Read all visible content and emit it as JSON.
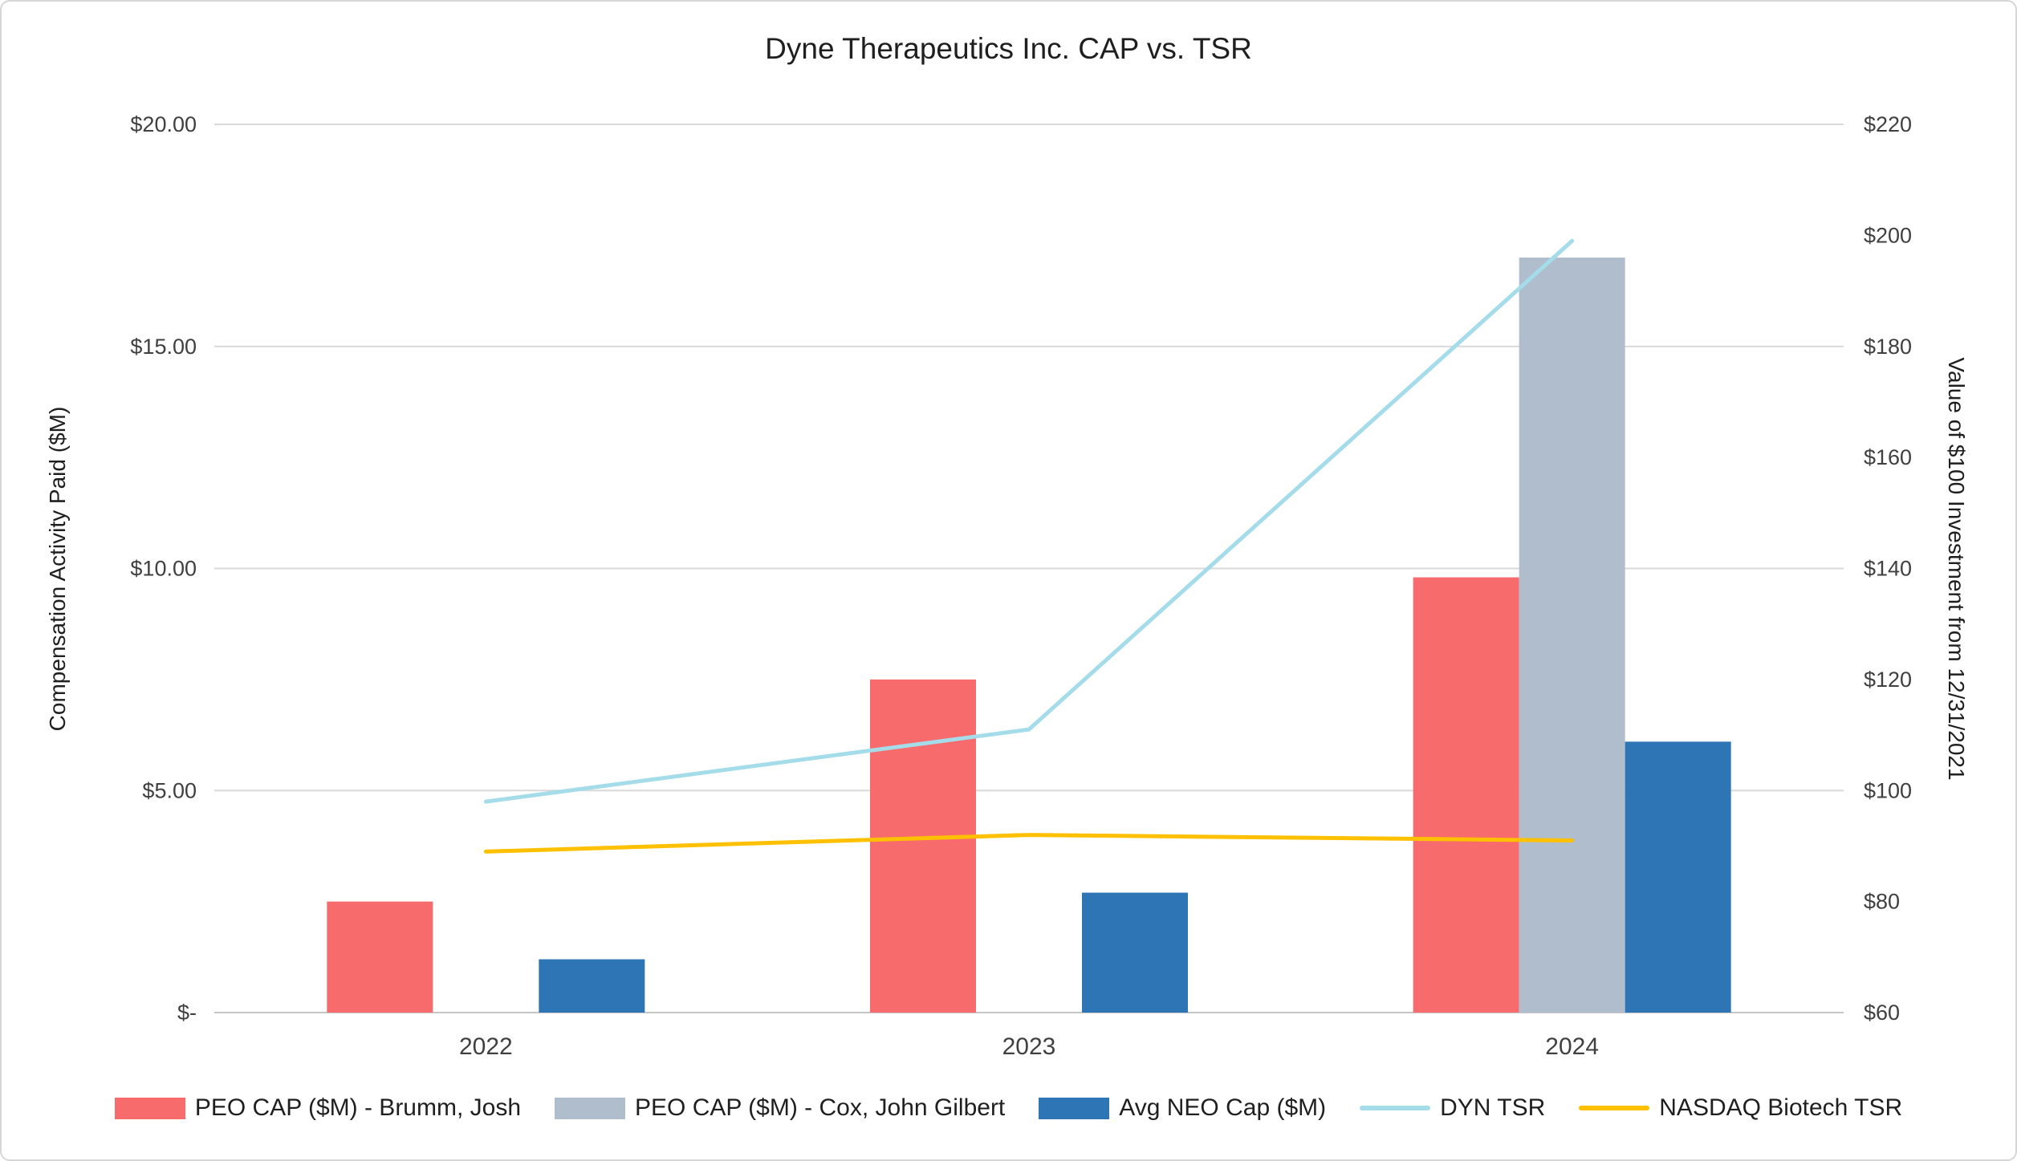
{
  "chart_data": {
    "type": "combo-bar-line",
    "title": "Dyne Therapeutics Inc. CAP vs. TSR",
    "categories": [
      "2022",
      "2023",
      "2024"
    ],
    "left_axis": {
      "label": "Compensation Activity Paid ($M)",
      "min": 0,
      "max": 20,
      "ticks": [
        "$-",
        "$5.00",
        "$10.00",
        "$15.00",
        "$20.00"
      ],
      "tick_values": [
        0,
        5,
        10,
        15,
        20
      ]
    },
    "right_axis": {
      "label": "Value of $100 Investment from 12/31/2021",
      "min": 60,
      "max": 220,
      "ticks": [
        "$60",
        "$80",
        "$100",
        "$120",
        "$140",
        "$160",
        "$180",
        "$200",
        "$220"
      ],
      "tick_values": [
        60,
        80,
        100,
        120,
        140,
        160,
        180,
        200,
        220
      ]
    },
    "bar_series": [
      {
        "name": "PEO CAP ($M) - Brumm, Josh",
        "color": "#F76B6C",
        "axis": "left",
        "values": [
          2.5,
          7.5,
          9.8
        ]
      },
      {
        "name": "PEO CAP ($M) - Cox, John Gilbert",
        "color": "#AFBDCC",
        "axis": "left",
        "values": [
          null,
          null,
          17.0
        ]
      },
      {
        "name": "Avg NEO Cap ($M)",
        "color": "#2E75B6",
        "axis": "left",
        "values": [
          1.2,
          2.7,
          6.1
        ]
      }
    ],
    "line_series": [
      {
        "name": "DYN TSR",
        "color": "#A5DCE9",
        "axis": "right",
        "values": [
          98,
          111,
          199
        ]
      },
      {
        "name": "NASDAQ Biotech TSR",
        "color": "#FFC000",
        "axis": "right",
        "values": [
          89,
          92,
          91
        ]
      }
    ],
    "grid": true,
    "legend_position": "bottom"
  }
}
